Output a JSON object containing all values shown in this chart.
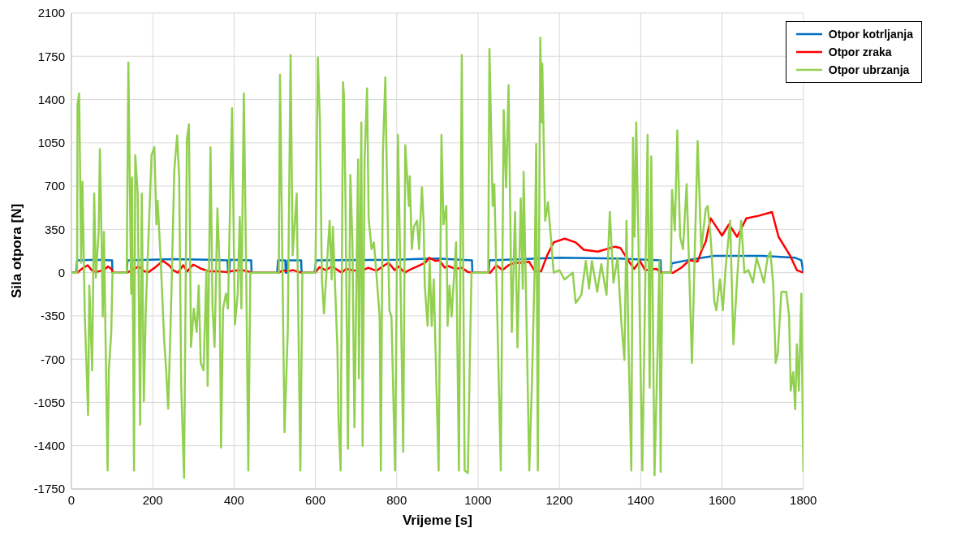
{
  "chart_data": {
    "type": "line",
    "xlabel": "Vrijeme [s]",
    "ylabel": "Sila otpora [N]",
    "xlim": [
      0,
      1800
    ],
    "xticks": [
      0,
      200,
      400,
      600,
      800,
      1000,
      1200,
      1400,
      1600,
      1800
    ],
    "ylim": [
      -1750,
      2100
    ],
    "yticks": [
      -1750,
      -1400,
      -1050,
      -700,
      -350,
      0,
      350,
      700,
      1050,
      1400,
      1750,
      2100
    ],
    "grid": true,
    "legend": "top right",
    "marker": "none",
    "line_style": "solid",
    "series": [
      {
        "name": "Otpor kotrljanja",
        "color": "#0070c0",
        "x": [
          0,
          12,
          14,
          60,
          100,
          101,
          136,
          138,
          250,
          384,
          385,
          388,
          390,
          442,
          443,
          506,
          508,
          526,
          527,
          530,
          532,
          565,
          566,
          598,
          602,
          800,
          900,
          985,
          986,
          1026,
          1028,
          1200,
          1340,
          1449,
          1450,
          1474,
          1476,
          1530,
          1580,
          1700,
          1780,
          1795,
          1800
        ],
        "values": [
          0,
          0,
          100,
          105,
          100,
          0,
          0,
          100,
          110,
          100,
          0,
          0,
          105,
          100,
          0,
          0,
          100,
          100,
          0,
          0,
          100,
          100,
          0,
          0,
          100,
          105,
          115,
          100,
          0,
          0,
          100,
          120,
          115,
          100,
          0,
          0,
          75,
          110,
          135,
          135,
          120,
          100,
          0
        ]
      },
      {
        "name": "Otpor zraka",
        "color": "#ff0000",
        "x": [
          0,
          15,
          25,
          40,
          50,
          60,
          80,
          90,
          98,
          103,
          136,
          150,
          165,
          180,
          190,
          205,
          225,
          240,
          250,
          262,
          275,
          285,
          295,
          300,
          320,
          340,
          360,
          380,
          400,
          420,
          440,
          445,
          510,
          520,
          530,
          545,
          560,
          567,
          600,
          610,
          625,
          640,
          655,
          665,
          675,
          690,
          710,
          730,
          750,
          770,
          780,
          795,
          805,
          820,
          830,
          850,
          870,
          880,
          895,
          905,
          918,
          925,
          945,
          960,
          975,
          985,
          1030,
          1045,
          1060,
          1075,
          1090,
          1110,
          1125,
          1140,
          1155,
          1170,
          1186,
          1213,
          1240,
          1260,
          1295,
          1336,
          1350,
          1370,
          1384,
          1398,
          1411,
          1439,
          1450,
          1480,
          1500,
          1520,
          1540,
          1550,
          1560,
          1572,
          1590,
          1600,
          1617,
          1637,
          1660,
          1690,
          1723,
          1739,
          1767,
          1784,
          1800
        ],
        "values": [
          0,
          0,
          30,
          60,
          20,
          5,
          20,
          50,
          30,
          0,
          0,
          20,
          50,
          10,
          5,
          40,
          95,
          60,
          20,
          0,
          60,
          10,
          50,
          65,
          30,
          10,
          10,
          5,
          15,
          20,
          5,
          0,
          0,
          20,
          10,
          20,
          5,
          0,
          0,
          45,
          20,
          50,
          20,
          0,
          30,
          20,
          10,
          40,
          15,
          60,
          80,
          20,
          50,
          0,
          20,
          50,
          80,
          120,
          95,
          100,
          40,
          55,
          30,
          40,
          5,
          0,
          0,
          60,
          20,
          60,
          80,
          80,
          90,
          10,
          10,
          140,
          245,
          275,
          245,
          185,
          170,
          210,
          200,
          95,
          30,
          95,
          20,
          30,
          0,
          0,
          40,
          100,
          90,
          180,
          250,
          440,
          350,
          300,
          390,
          290,
          440,
          460,
          490,
          290,
          140,
          20,
          0
        ]
      },
      {
        "name": "Otpor ubrzanja",
        "color": "#92d050",
        "x": [
          0,
          14,
          15,
          19,
          24,
          27,
          33,
          38,
          41,
          44,
          51,
          56,
          60,
          67,
          70,
          74,
          77,
          80,
          86,
          89,
          92,
          98,
          101,
          136,
          140,
          147,
          149,
          154,
          157,
          163,
          169,
          173,
          178,
          183,
          197,
          204,
          209,
          212,
          219,
          228,
          233,
          238,
          245,
          253,
          260,
          265,
          270,
          277,
          284,
          289,
          294,
          301,
          308,
          313,
          318,
          325,
          332,
          335,
          342,
          347,
          352,
          359,
          364,
          368,
          373,
          380,
          385,
          395,
          402,
          409,
          414,
          418,
          424,
          430,
          435,
          440,
          510,
          513,
          524,
          532,
          539,
          544,
          554,
          563,
          568,
          600,
          606,
          611,
          616,
          621,
          635,
          640,
          643,
          654,
          657,
          662,
          668,
          670,
          674,
          680,
          686,
          691,
          696,
          705,
          707,
          713,
          716,
          721,
          727,
          731,
          738,
          744,
          758,
          761,
          766,
          772,
          775,
          782,
          787,
          796,
          803,
          809,
          816,
          821,
          830,
          832,
          837,
          842,
          850,
          855,
          862,
          866,
          869,
          876,
          881,
          886,
          891,
          903,
          910,
          915,
          922,
          925,
          930,
          935,
          946,
          953,
          960,
          967,
          975,
          981,
          984,
          1025,
          1028,
          1036,
          1040,
          1056,
          1063,
          1069,
          1075,
          1083,
          1091,
          1097,
          1105,
          1110,
          1112,
          1119,
          1126,
          1132,
          1139,
          1143,
          1147,
          1153,
          1157,
          1158,
          1165,
          1172,
          1179,
          1186,
          1200,
          1213,
          1233,
          1240,
          1254,
          1265,
          1273,
          1280,
          1293,
          1303,
          1316,
          1324,
          1333,
          1343,
          1353,
          1360,
          1365,
          1370,
          1377,
          1381,
          1385,
          1389,
          1394,
          1404,
          1417,
          1422,
          1426,
          1434,
          1442,
          1446,
          1449,
          1453,
          1474,
          1477,
          1484,
          1490,
          1497,
          1504,
          1513,
          1526,
          1540,
          1549,
          1560,
          1565,
          1573,
          1581,
          1586,
          1595,
          1602,
          1609,
          1620,
          1628,
          1637,
          1647,
          1655,
          1665,
          1676,
          1685,
          1696,
          1703,
          1712,
          1719,
          1726,
          1732,
          1737,
          1746,
          1758,
          1765,
          1769,
          1775,
          1780,
          1784,
          1789,
          1795,
          1800
        ],
        "values": [
          0,
          0,
          1360,
          1450,
          80,
          735,
          -355,
          -850,
          -1150,
          -105,
          -790,
          640,
          -40,
          330,
          1000,
          300,
          -355,
          330,
          -980,
          -1600,
          -790,
          -480,
          0,
          0,
          1700,
          -170,
          770,
          -1600,
          950,
          640,
          -1230,
          640,
          -1040,
          -290,
          950,
          1015,
          390,
          580,
          140,
          -540,
          -790,
          -1100,
          -290,
          830,
          1110,
          770,
          -915,
          -1660,
          1080,
          1200,
          -600,
          -290,
          -480,
          -105,
          -730,
          -790,
          20,
          -915,
          1015,
          -290,
          -600,
          520,
          80,
          -1415,
          -290,
          -170,
          -290,
          1330,
          -420,
          -170,
          450,
          -290,
          1450,
          -40,
          -1600,
          0,
          0,
          1600,
          -1290,
          -480,
          1760,
          140,
          640,
          -1600,
          0,
          0,
          1740,
          1240,
          -55,
          -330,
          420,
          -55,
          370,
          -600,
          -1200,
          -1600,
          1540,
          1440,
          590,
          -1425,
          790,
          245,
          -1250,
          915,
          -855,
          1215,
          -1400,
          915,
          1490,
          440,
          190,
          245,
          -355,
          -1600,
          965,
          1580,
          940,
          -305,
          -355,
          -1600,
          1115,
          0,
          -1450,
          1030,
          540,
          780,
          190,
          370,
          420,
          190,
          690,
          420,
          -105,
          -430,
          95,
          -430,
          -55,
          -1600,
          1115,
          390,
          540,
          -430,
          -105,
          -355,
          245,
          -1600,
          1760,
          -1600,
          -1620,
          -480,
          0,
          0,
          1810,
          540,
          715,
          -1600,
          1315,
          690,
          1515,
          -480,
          490,
          -605,
          600,
          -130,
          815,
          -355,
          -1600,
          -950,
          0,
          1040,
          -1600,
          1900,
          1215,
          1690,
          420,
          570,
          290,
          0,
          20,
          -55,
          0,
          -245,
          -180,
          95,
          -130,
          95,
          -155,
          70,
          -180,
          490,
          -80,
          120,
          -430,
          -705,
          420,
          -580,
          -1600,
          1090,
          290,
          1215,
          340,
          -1600,
          1115,
          -930,
          940,
          -1640,
          -555,
          95,
          -1610,
          0,
          0,
          670,
          340,
          1150,
          290,
          190,
          715,
          -730,
          1065,
          190,
          515,
          540,
          240,
          -230,
          -305,
          -55,
          -305,
          45,
          420,
          -580,
          -55,
          420,
          0,
          20,
          -80,
          120,
          0,
          -80,
          120,
          170,
          -105,
          -730,
          -655,
          -155,
          -155,
          -355,
          -955,
          -805,
          -1105,
          -580,
          -955,
          -170,
          -1610
        ]
      }
    ]
  }
}
